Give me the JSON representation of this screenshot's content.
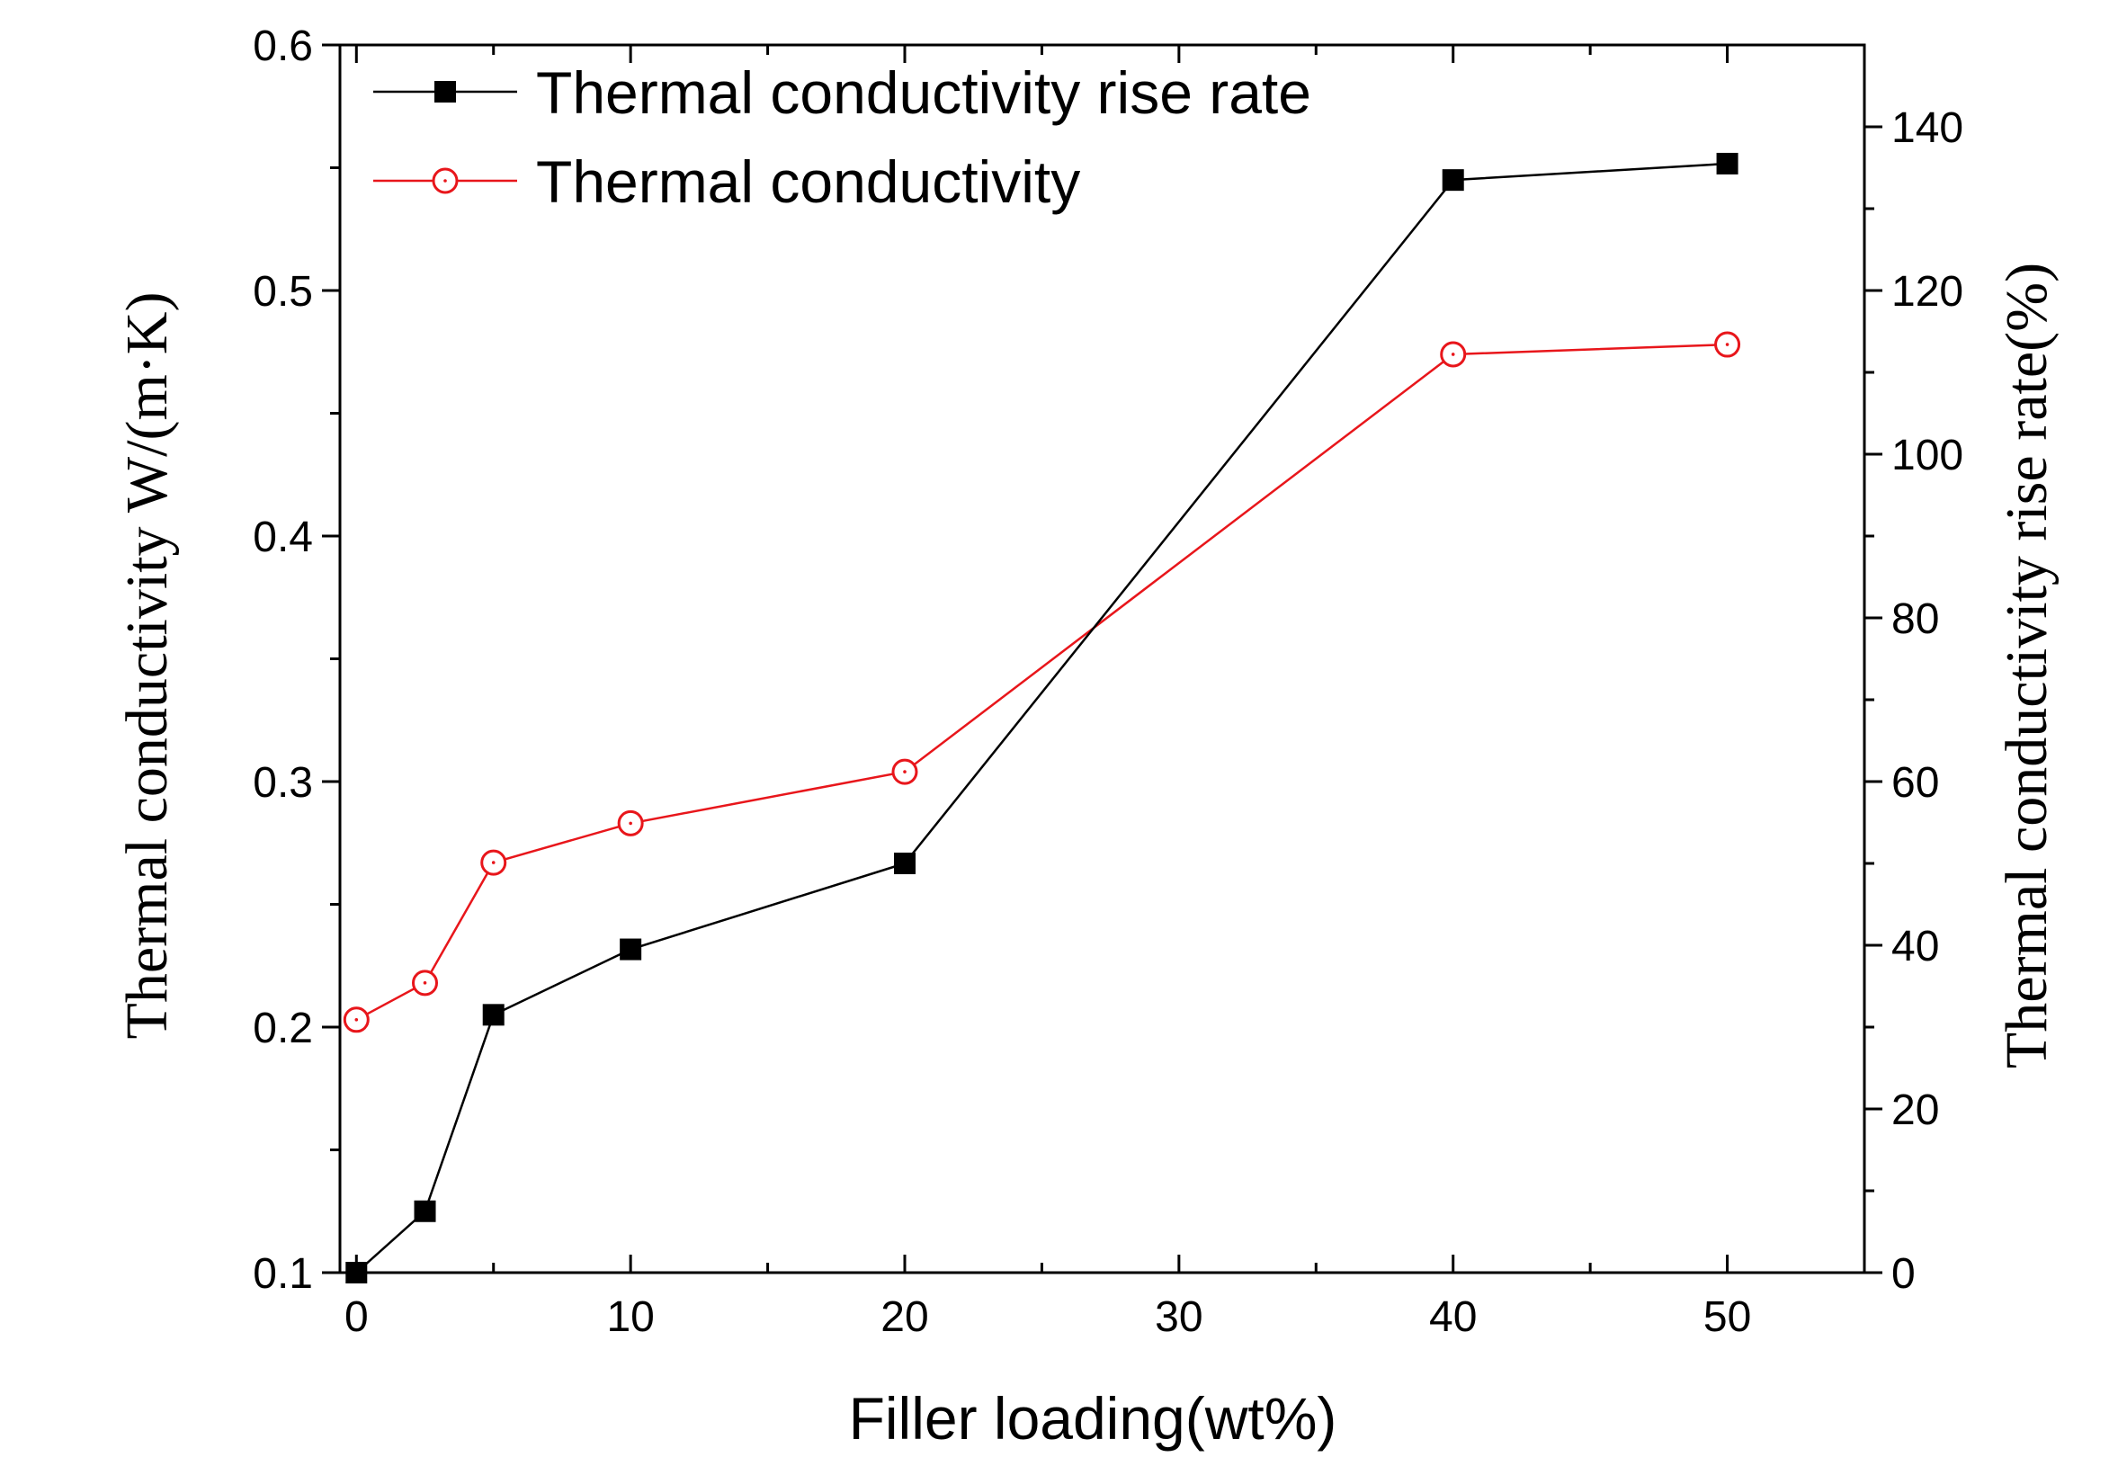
{
  "chart_data": {
    "type": "line",
    "x": [
      0,
      2.5,
      5,
      10,
      20,
      40,
      50
    ],
    "xlabel": "Filler loading(wt%)",
    "xlim": [
      -0.6,
      55
    ],
    "xticks": [
      "0",
      "10",
      "20",
      "30",
      "40",
      "50"
    ],
    "ylabel": "Thermal conductivity W/(m·K)",
    "ylim": [
      0.1,
      0.6
    ],
    "yticks": [
      "0.1",
      "0.2",
      "0.3",
      "0.4",
      "0.5",
      "0.6"
    ],
    "y2label": "Thermal conductivity rise rate(%)",
    "y2lim": [
      0,
      150
    ],
    "y2ticks": [
      "0",
      "20",
      "40",
      "60",
      "80",
      "100",
      "120",
      "140"
    ],
    "legend_position": "top-left",
    "grid": false,
    "series": [
      {
        "name": "Thermal conductivity rise rate",
        "axis": "right",
        "color": "#000000",
        "marker": "filled-square",
        "values": [
          0,
          7.5,
          31.5,
          39.5,
          50,
          133.5,
          135.5
        ]
      },
      {
        "name": "Thermal conductivity",
        "axis": "left",
        "color": "#e8161b",
        "marker": "open-circle",
        "values": [
          0.203,
          0.218,
          0.267,
          0.283,
          0.304,
          0.474,
          0.478
        ]
      }
    ]
  }
}
